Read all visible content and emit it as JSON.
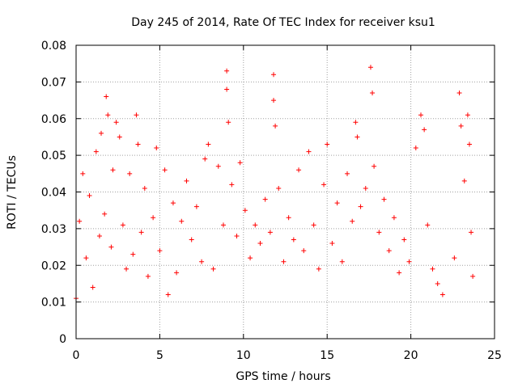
{
  "chart_data": {
    "type": "scatter",
    "title": "Day 245 of 2014, Rate Of TEC Index for receiver ksu1",
    "xlabel": "GPS time / hours",
    "ylabel": "ROTI / TECUs",
    "xlim": [
      0,
      25
    ],
    "ylim": [
      0,
      0.08
    ],
    "x_ticks": [
      "0",
      "5",
      "10",
      "15",
      "20",
      "25"
    ],
    "y_ticks": [
      "0",
      "0.01",
      "0.02",
      "0.03",
      "0.04",
      "0.05",
      "0.06",
      "0.07",
      "0.08"
    ],
    "grid": true,
    "marker": "+",
    "marker_color": "#ff0000",
    "series": [
      {
        "points": [
          [
            0.0,
            0.011
          ],
          [
            0.2,
            0.032
          ],
          [
            0.4,
            0.045
          ],
          [
            0.6,
            0.022
          ],
          [
            0.8,
            0.039
          ],
          [
            1.0,
            0.014
          ],
          [
            1.2,
            0.051
          ],
          [
            1.4,
            0.028
          ],
          [
            1.5,
            0.056
          ],
          [
            1.7,
            0.034
          ],
          [
            1.8,
            0.066
          ],
          [
            1.9,
            0.061
          ],
          [
            2.1,
            0.025
          ],
          [
            2.2,
            0.046
          ],
          [
            2.4,
            0.059
          ],
          [
            2.6,
            0.055
          ],
          [
            2.8,
            0.031
          ],
          [
            3.0,
            0.019
          ],
          [
            3.2,
            0.045
          ],
          [
            3.4,
            0.023
          ],
          [
            3.6,
            0.061
          ],
          [
            3.7,
            0.053
          ],
          [
            3.9,
            0.029
          ],
          [
            4.1,
            0.041
          ],
          [
            4.3,
            0.017
          ],
          [
            4.6,
            0.033
          ],
          [
            4.8,
            0.052
          ],
          [
            5.0,
            0.024
          ],
          [
            5.3,
            0.046
          ],
          [
            5.5,
            0.012
          ],
          [
            5.8,
            0.037
          ],
          [
            6.0,
            0.018
          ],
          [
            6.3,
            0.032
          ],
          [
            6.6,
            0.043
          ],
          [
            6.9,
            0.027
          ],
          [
            7.2,
            0.036
          ],
          [
            7.5,
            0.021
          ],
          [
            7.7,
            0.049
          ],
          [
            7.9,
            0.053
          ],
          [
            8.2,
            0.019
          ],
          [
            8.5,
            0.047
          ],
          [
            8.8,
            0.031
          ],
          [
            9.0,
            0.073
          ],
          [
            9.0,
            0.068
          ],
          [
            9.1,
            0.059
          ],
          [
            9.3,
            0.042
          ],
          [
            9.6,
            0.028
          ],
          [
            9.8,
            0.048
          ],
          [
            10.1,
            0.035
          ],
          [
            10.4,
            0.022
          ],
          [
            10.7,
            0.031
          ],
          [
            11.0,
            0.026
          ],
          [
            11.3,
            0.038
          ],
          [
            11.6,
            0.029
          ],
          [
            11.8,
            0.072
          ],
          [
            11.8,
            0.065
          ],
          [
            11.9,
            0.058
          ],
          [
            12.1,
            0.041
          ],
          [
            12.4,
            0.021
          ],
          [
            12.7,
            0.033
          ],
          [
            13.0,
            0.027
          ],
          [
            13.3,
            0.046
          ],
          [
            13.6,
            0.024
          ],
          [
            13.9,
            0.051
          ],
          [
            14.2,
            0.031
          ],
          [
            14.5,
            0.019
          ],
          [
            14.8,
            0.042
          ],
          [
            15.0,
            0.053
          ],
          [
            15.3,
            0.026
          ],
          [
            15.6,
            0.037
          ],
          [
            15.9,
            0.021
          ],
          [
            16.2,
            0.045
          ],
          [
            16.5,
            0.032
          ],
          [
            16.7,
            0.059
          ],
          [
            16.8,
            0.055
          ],
          [
            17.0,
            0.036
          ],
          [
            17.3,
            0.041
          ],
          [
            17.6,
            0.074
          ],
          [
            17.7,
            0.067
          ],
          [
            17.8,
            0.047
          ],
          [
            18.1,
            0.029
          ],
          [
            18.4,
            0.038
          ],
          [
            18.7,
            0.024
          ],
          [
            19.0,
            0.033
          ],
          [
            19.3,
            0.018
          ],
          [
            19.6,
            0.027
          ],
          [
            19.9,
            0.021
          ],
          [
            20.3,
            0.052
          ],
          [
            20.6,
            0.061
          ],
          [
            20.8,
            0.057
          ],
          [
            21.0,
            0.031
          ],
          [
            21.3,
            0.019
          ],
          [
            21.6,
            0.015
          ],
          [
            21.9,
            0.012
          ],
          [
            22.6,
            0.022
          ],
          [
            22.9,
            0.067
          ],
          [
            23.0,
            0.058
          ],
          [
            23.2,
            0.043
          ],
          [
            23.4,
            0.061
          ],
          [
            23.5,
            0.053
          ],
          [
            23.6,
            0.029
          ],
          [
            23.7,
            0.017
          ]
        ]
      }
    ]
  }
}
